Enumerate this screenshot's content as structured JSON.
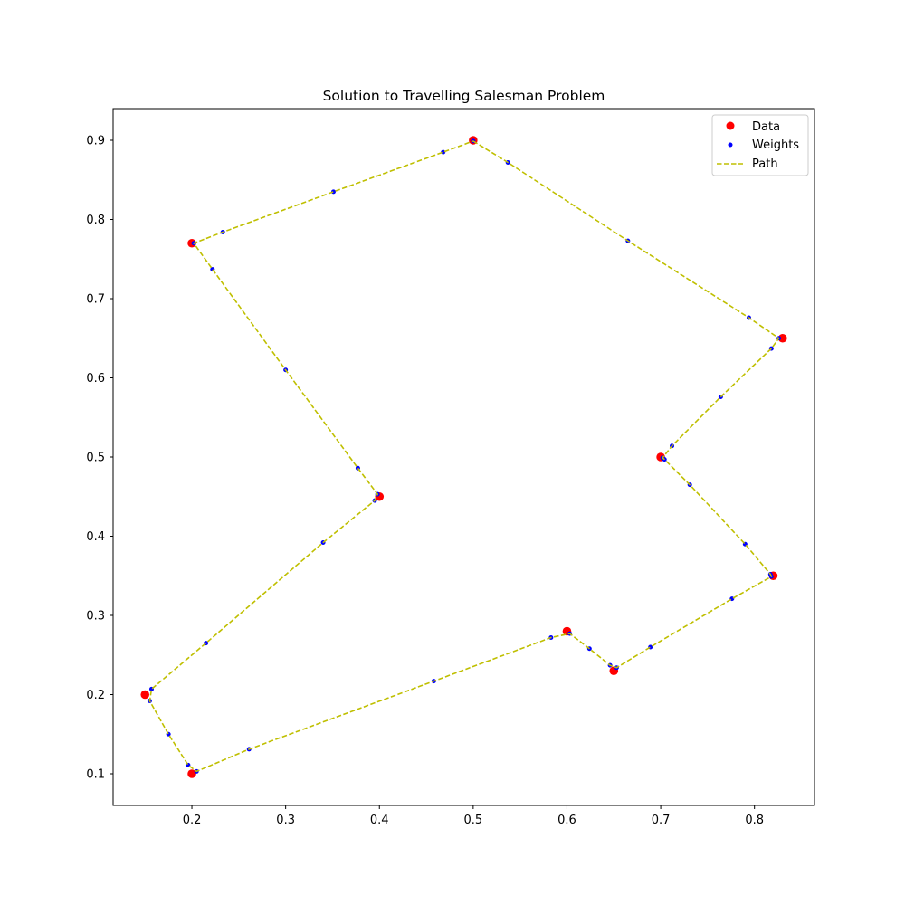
{
  "chart_data": {
    "type": "scatter",
    "title": "Solution to Travelling Salesman Problem",
    "xlabel": "",
    "ylabel": "",
    "xlim": [
      0.116,
      0.864
    ],
    "ylim": [
      0.06,
      0.94
    ],
    "xticks": [
      0.2,
      0.3,
      0.4,
      0.5,
      0.6,
      0.7,
      0.8
    ],
    "xtick_labels": [
      "0.2",
      "0.3",
      "0.4",
      "0.5",
      "0.6",
      "0.7",
      "0.8"
    ],
    "yticks": [
      0.1,
      0.2,
      0.3,
      0.4,
      0.5,
      0.6,
      0.7,
      0.8,
      0.9
    ],
    "ytick_labels": [
      "0.1",
      "0.2",
      "0.3",
      "0.4",
      "0.5",
      "0.6",
      "0.7",
      "0.8",
      "0.9"
    ],
    "grid": false,
    "legend_position": "top-right",
    "legend": [
      "Data",
      "Weights",
      "Path"
    ],
    "series": [
      {
        "name": "Data",
        "kind": "scatter",
        "color": "#ff0000",
        "points": [
          [
            0.5,
            0.9
          ],
          [
            0.83,
            0.65
          ],
          [
            0.7,
            0.5
          ],
          [
            0.82,
            0.35
          ],
          [
            0.65,
            0.23
          ],
          [
            0.6,
            0.28
          ],
          [
            0.2,
            0.1
          ],
          [
            0.15,
            0.2
          ],
          [
            0.4,
            0.45
          ],
          [
            0.2,
            0.77
          ]
        ]
      },
      {
        "name": "Weights",
        "kind": "scatter",
        "color": "#0000ff",
        "points": [
          [
            0.5,
            0.899
          ],
          [
            0.537,
            0.872
          ],
          [
            0.665,
            0.773
          ],
          [
            0.794,
            0.676
          ],
          [
            0.826,
            0.65
          ],
          [
            0.818,
            0.637
          ],
          [
            0.764,
            0.576
          ],
          [
            0.712,
            0.514
          ],
          [
            0.702,
            0.499
          ],
          [
            0.704,
            0.497
          ],
          [
            0.731,
            0.465
          ],
          [
            0.79,
            0.39
          ],
          [
            0.817,
            0.352
          ],
          [
            0.818,
            0.349
          ],
          [
            0.776,
            0.321
          ],
          [
            0.689,
            0.26
          ],
          [
            0.653,
            0.234
          ],
          [
            0.646,
            0.237
          ],
          [
            0.624,
            0.258
          ],
          [
            0.603,
            0.277
          ],
          [
            0.583,
            0.272
          ],
          [
            0.458,
            0.217
          ],
          [
            0.261,
            0.131
          ],
          [
            0.205,
            0.103
          ],
          [
            0.196,
            0.111
          ],
          [
            0.175,
            0.15
          ],
          [
            0.155,
            0.192
          ],
          [
            0.157,
            0.207
          ],
          [
            0.215,
            0.265
          ],
          [
            0.34,
            0.392
          ],
          [
            0.395,
            0.445
          ],
          [
            0.398,
            0.453
          ],
          [
            0.377,
            0.486
          ],
          [
            0.3,
            0.61
          ],
          [
            0.222,
            0.737
          ],
          [
            0.202,
            0.77
          ],
          [
            0.233,
            0.784
          ],
          [
            0.351,
            0.835
          ],
          [
            0.468,
            0.885
          ]
        ]
      },
      {
        "name": "Path",
        "kind": "line",
        "color": "#bfbf00",
        "dash": true,
        "points": [
          [
            0.5,
            0.899
          ],
          [
            0.537,
            0.872
          ],
          [
            0.665,
            0.773
          ],
          [
            0.794,
            0.676
          ],
          [
            0.826,
            0.65
          ],
          [
            0.818,
            0.637
          ],
          [
            0.764,
            0.576
          ],
          [
            0.712,
            0.514
          ],
          [
            0.702,
            0.499
          ],
          [
            0.704,
            0.497
          ],
          [
            0.731,
            0.465
          ],
          [
            0.79,
            0.39
          ],
          [
            0.817,
            0.352
          ],
          [
            0.818,
            0.349
          ],
          [
            0.776,
            0.321
          ],
          [
            0.689,
            0.26
          ],
          [
            0.653,
            0.234
          ],
          [
            0.646,
            0.237
          ],
          [
            0.624,
            0.258
          ],
          [
            0.603,
            0.277
          ],
          [
            0.583,
            0.272
          ],
          [
            0.458,
            0.217
          ],
          [
            0.261,
            0.131
          ],
          [
            0.205,
            0.103
          ],
          [
            0.196,
            0.111
          ],
          [
            0.175,
            0.15
          ],
          [
            0.155,
            0.192
          ],
          [
            0.157,
            0.207
          ],
          [
            0.215,
            0.265
          ],
          [
            0.34,
            0.392
          ],
          [
            0.395,
            0.445
          ],
          [
            0.398,
            0.453
          ],
          [
            0.377,
            0.486
          ],
          [
            0.3,
            0.61
          ],
          [
            0.222,
            0.737
          ],
          [
            0.202,
            0.77
          ],
          [
            0.233,
            0.784
          ],
          [
            0.351,
            0.835
          ],
          [
            0.468,
            0.885
          ],
          [
            0.5,
            0.899
          ]
        ]
      }
    ]
  }
}
